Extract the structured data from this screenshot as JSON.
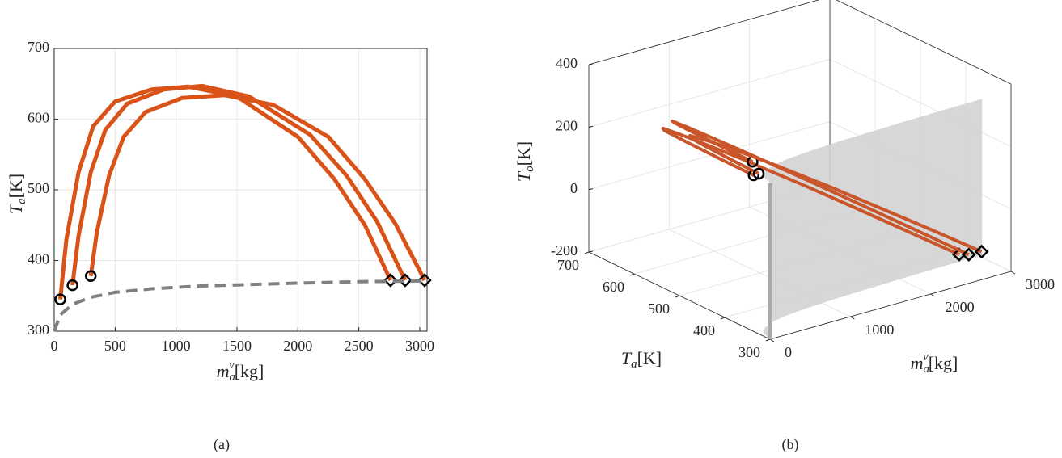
{
  "chart_data": [
    {
      "type": "line",
      "caption": "(a)",
      "xlabel": {
        "symbol": "m",
        "sub": "a",
        "sup": "v",
        "unit": "[kg]"
      },
      "ylabel": {
        "symbol": "T",
        "sub": "a",
        "unit": "[K]"
      },
      "xlim": [
        0,
        3060
      ],
      "ylim": [
        300,
        700
      ],
      "xticks": [
        0,
        500,
        1000,
        1500,
        2000,
        2500,
        3000
      ],
      "yticks": [
        300,
        400,
        500,
        600,
        700
      ],
      "grid": true,
      "series": [
        {
          "color": "#d95319",
          "start_marker": "circle",
          "end_marker": "diamond",
          "x": [
            50,
            100,
            200,
            320,
            500,
            800,
            1100,
            1500,
            2000,
            2300,
            2550,
            2760
          ],
          "values": [
            345,
            430,
            525,
            590,
            625,
            642,
            646,
            632,
            575,
            515,
            450,
            372
          ]
        },
        {
          "color": "#d95319",
          "start_marker": "circle",
          "end_marker": "diamond",
          "x": [
            150,
            200,
            300,
            420,
            600,
            900,
            1215,
            1600,
            2100,
            2400,
            2650,
            2880
          ],
          "values": [
            365,
            435,
            525,
            585,
            622,
            642,
            647,
            632,
            578,
            520,
            455,
            372
          ]
        },
        {
          "color": "#d95319",
          "start_marker": "circle",
          "end_marker": "diamond",
          "x": [
            300,
            350,
            450,
            570,
            750,
            1050,
            1400,
            1800,
            2250,
            2550,
            2800,
            3040
          ],
          "values": [
            378,
            440,
            520,
            575,
            610,
            630,
            634,
            620,
            575,
            515,
            452,
            372
          ]
        },
        {
          "color": "#808080",
          "dashed": true,
          "x": [
            0,
            50,
            150,
            300,
            500,
            800,
            1200,
            1600,
            2000,
            2500,
            3040
          ],
          "values": [
            300,
            323,
            338,
            348,
            355,
            360,
            364,
            366,
            368,
            370,
            371
          ]
        }
      ]
    },
    {
      "type": "line3d",
      "caption": "(b)",
      "xlabel": {
        "symbol": "m",
        "sub": "a",
        "sup": "v",
        "unit": "[kg]"
      },
      "ylabel": {
        "symbol": "T",
        "sub": "a",
        "unit": "[K]"
      },
      "zlabel": {
        "symbol": "T",
        "sub": "o",
        "unit": "[K]"
      },
      "xlim": [
        0,
        3000
      ],
      "ylim": [
        300,
        700
      ],
      "zlim": [
        -200,
        400
      ],
      "xticks": [
        0,
        1000,
        2000,
        3000
      ],
      "yticks": [
        300,
        400,
        500,
        600,
        700
      ],
      "zticks": [
        -200,
        0,
        200,
        400
      ],
      "grid": true,
      "series": [
        {
          "color": "#c9562a",
          "start_marker": "circle",
          "end_marker": "diamond",
          "x": [
            50,
            100,
            200,
            320,
            500,
            800,
            1100,
            1500,
            2000,
            2300,
            2550,
            2760
          ],
          "y": [
            345,
            430,
            525,
            590,
            625,
            642,
            646,
            632,
            575,
            515,
            450,
            372
          ],
          "z": [
            290,
            281,
            264,
            243,
            212,
            160,
            108,
            39,
            -47,
            -99,
            -143,
            -179
          ]
        },
        {
          "color": "#c9562a",
          "start_marker": "circle",
          "end_marker": "diamond",
          "x": [
            150,
            200,
            300,
            420,
            600,
            900,
            1215,
            1600,
            2100,
            2400,
            2650,
            2880
          ],
          "y": [
            365,
            435,
            525,
            585,
            622,
            642,
            647,
            632,
            578,
            520,
            455,
            372
          ],
          "z": [
            312,
            303,
            285,
            263,
            230,
            175,
            117,
            47,
            -45,
            -100,
            -146,
            -188
          ]
        },
        {
          "color": "#c9562a",
          "start_marker": "circle",
          "end_marker": "diamond",
          "x": [
            300,
            350,
            450,
            570,
            750,
            1050,
            1400,
            1800,
            2250,
            2550,
            2800,
            3040
          ],
          "y": [
            378,
            440,
            520,
            575,
            610,
            630,
            634,
            620,
            575,
            515,
            452,
            372
          ],
          "z": [
            254,
            246,
            230,
            210,
            181,
            132,
            76,
            11,
            -62,
            -111,
            -151,
            -190
          ]
        }
      ],
      "surface": {
        "color": "#d3d3d3",
        "x": [
          0,
          50,
          150,
          300,
          500,
          800,
          1200,
          1600,
          2000,
          2500,
          3040
        ],
        "y": [
          300,
          323,
          338,
          348,
          355,
          360,
          364,
          366,
          368,
          370,
          371
        ],
        "z": [
          -200,
          300
        ]
      }
    }
  ]
}
